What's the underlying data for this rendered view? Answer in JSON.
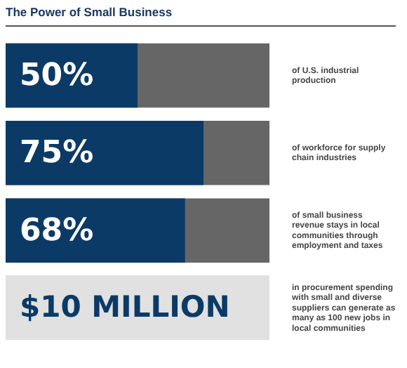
{
  "chart_data": {
    "type": "bar",
    "orientation": "horizontal",
    "title": "The Power of Small Business",
    "categories": [
      "of U.S. industrial production",
      "of workforce for supply chain industries",
      "of small business revenue stays in local communities through employment and taxes",
      "in procurement spending with small and diverse suppliers can generate as many as 100 new jobs in local communities"
    ],
    "series": [
      {
        "color": "#0b3a66",
        "values": [
          50,
          75,
          68,
          null
        ],
        "value_labels": [
          "50%",
          "75%",
          "68%",
          null
        ]
      }
    ],
    "xlim": [
      0,
      100
    ],
    "tick_labels": "y",
    "legend": false,
    "annotations": [
      "$10 MILLION"
    ]
  }
}
